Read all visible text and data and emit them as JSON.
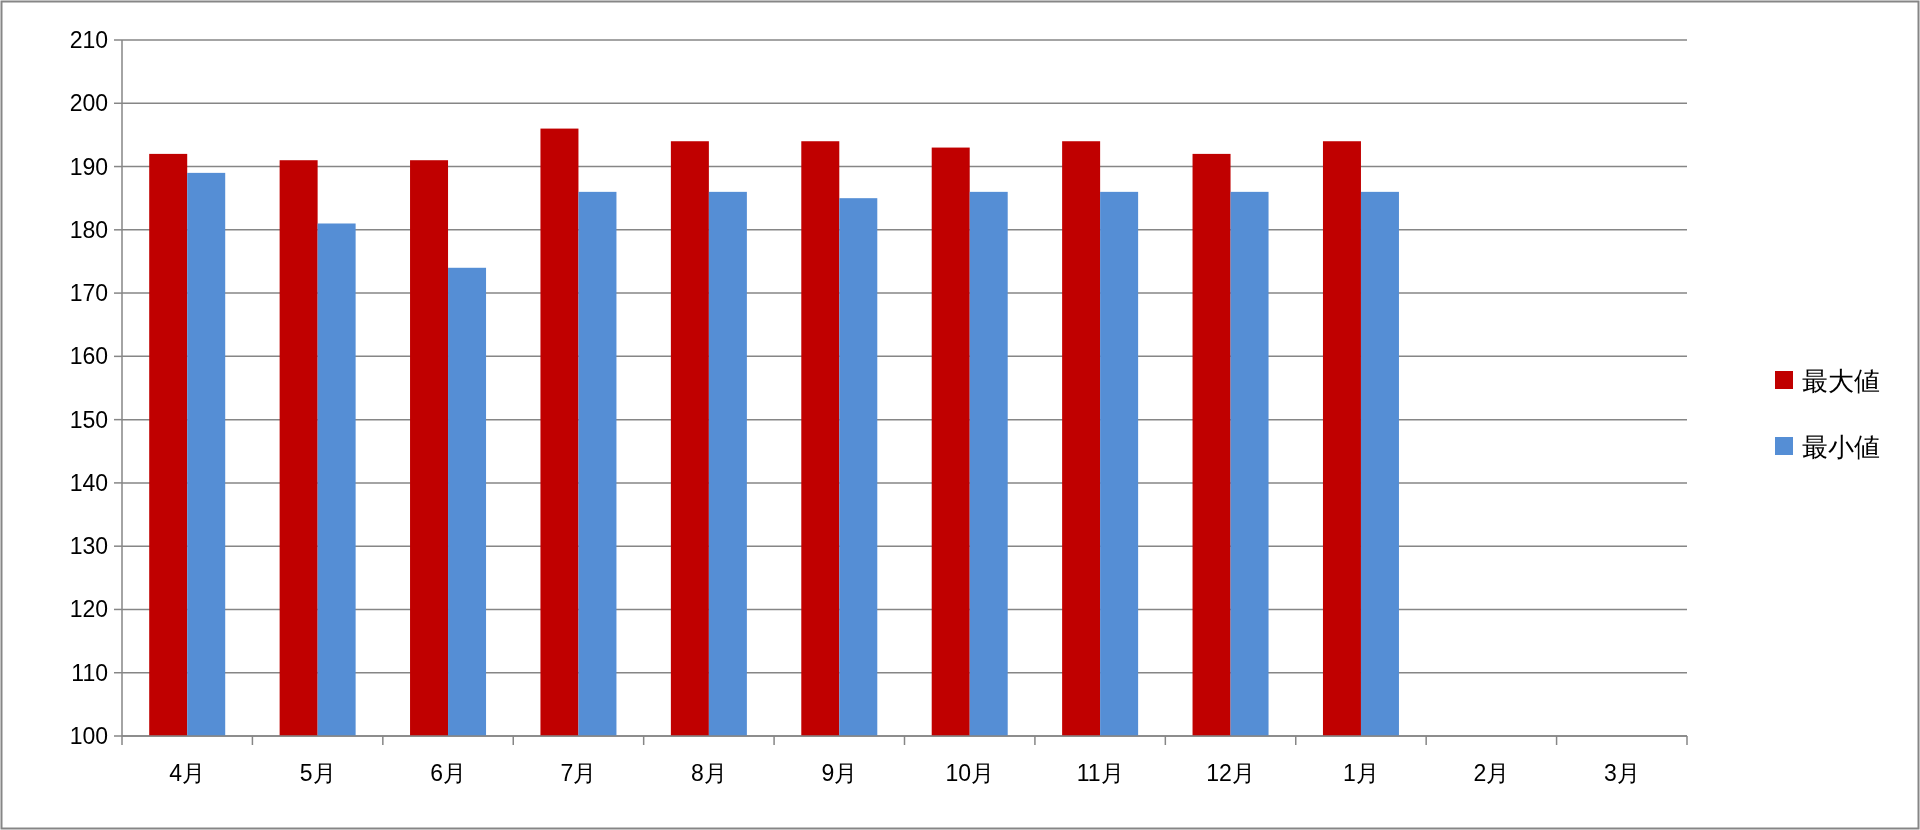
{
  "chart_data": {
    "type": "bar",
    "categories": [
      "4月",
      "5月",
      "6月",
      "7月",
      "8月",
      "9月",
      "10月",
      "11月",
      "12月",
      "1月",
      "2月",
      "3月"
    ],
    "series": [
      {
        "name": "最大値",
        "color": "#c00000",
        "values": [
          192,
          191,
          191,
          196,
          194,
          194,
          193,
          194,
          192,
          194,
          null,
          null
        ]
      },
      {
        "name": "最小値",
        "color": "#558ed5",
        "values": [
          189,
          181,
          174,
          186,
          186,
          185,
          186,
          186,
          186,
          186,
          null,
          null
        ]
      }
    ],
    "ylim": [
      100,
      210
    ],
    "yticks": [
      100,
      110,
      120,
      130,
      140,
      150,
      160,
      170,
      180,
      190,
      200,
      210
    ],
    "grid": "y",
    "legend": "right"
  }
}
